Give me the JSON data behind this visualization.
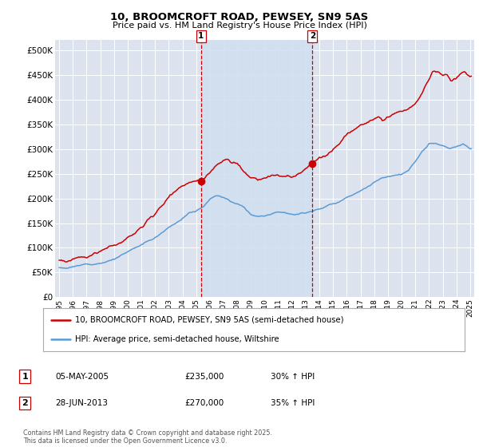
{
  "title": "10, BROOMCROFT ROAD, PEWSEY, SN9 5AS",
  "subtitle": "Price paid vs. HM Land Registry's House Price Index (HPI)",
  "legend_line1": "10, BROOMCROFT ROAD, PEWSEY, SN9 5AS (semi-detached house)",
  "legend_line2": "HPI: Average price, semi-detached house, Wiltshire",
  "table_rows": [
    {
      "num": "1",
      "date": "05-MAY-2005",
      "price": "£235,000",
      "change": "30% ↑ HPI"
    },
    {
      "num": "2",
      "date": "28-JUN-2013",
      "price": "£270,000",
      "change": "35% ↑ HPI"
    }
  ],
  "footer": "Contains HM Land Registry data © Crown copyright and database right 2025.\nThis data is licensed under the Open Government Licence v3.0.",
  "red_color": "#cc0000",
  "blue_color": "#5b9bd5",
  "vline_color": "#cc0000",
  "background_color": "#ffffff",
  "plot_bg_color": "#dde3ee",
  "shade_color": "#d0dff0",
  "ylim": [
    0,
    520000
  ],
  "yticks": [
    0,
    50000,
    100000,
    150000,
    200000,
    250000,
    300000,
    350000,
    400000,
    450000,
    500000
  ],
  "marker1_x": 2005.35,
  "marker1_y": 235000,
  "marker2_x": 2013.49,
  "marker2_y": 270000,
  "vline1_x": 2005.35,
  "vline2_x": 2013.49,
  "x_start": 1995,
  "x_end": 2025,
  "xtick_years": [
    1995,
    1996,
    1997,
    1998,
    1999,
    2000,
    2001,
    2002,
    2003,
    2004,
    2005,
    2006,
    2007,
    2008,
    2009,
    2010,
    2011,
    2012,
    2013,
    2014,
    2015,
    2016,
    2017,
    2018,
    2019,
    2020,
    2021,
    2022,
    2023,
    2024,
    2025
  ]
}
